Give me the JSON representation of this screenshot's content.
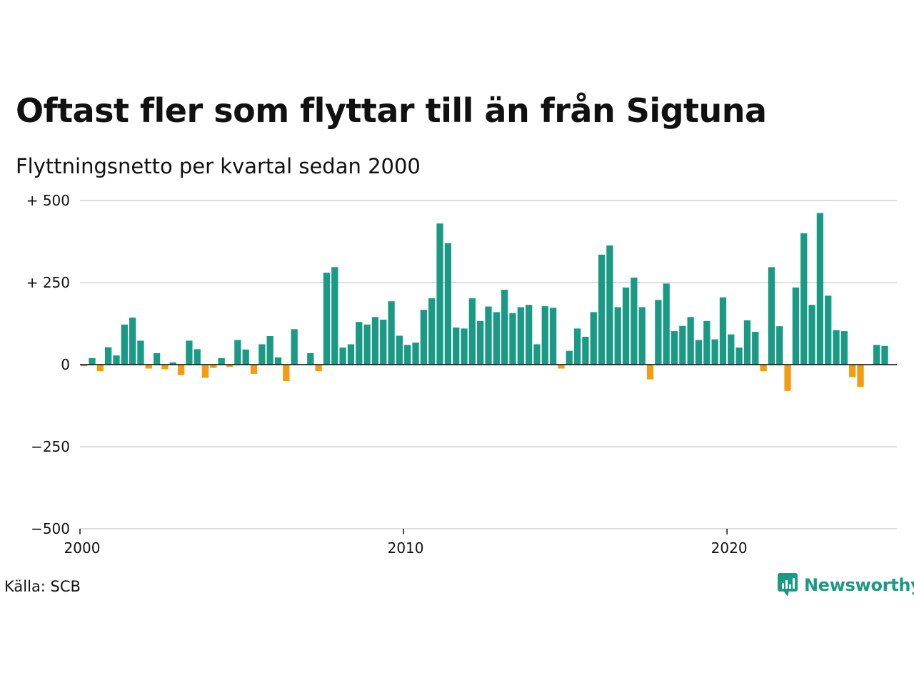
{
  "chart_data": {
    "type": "bar",
    "title": "Oftast fler som flyttar till än från Sigtuna",
    "subtitle": "Flyttningsnetto per kvartal sedan 2000",
    "xlabel": "",
    "ylabel": "",
    "ylim": [
      -500,
      500
    ],
    "xlim": [
      2000.0,
      2025.25
    ],
    "y_ticks": [
      {
        "value": 500,
        "label": "+ 500"
      },
      {
        "value": 250,
        "label": "+ 250"
      },
      {
        "value": 0,
        "label": "0"
      },
      {
        "value": -250,
        "label": "−250"
      },
      {
        "value": -500,
        "label": "−500"
      }
    ],
    "x_ticks": [
      {
        "value": 2000,
        "label": "2000"
      },
      {
        "value": 2010,
        "label": "2010"
      },
      {
        "value": 2020,
        "label": "2020"
      }
    ],
    "grid": true,
    "start_year": 2000,
    "positive_color": "#1a9a84",
    "negative_color": "#f39c12",
    "values": [
      -5,
      20,
      -20,
      53,
      28,
      122,
      143,
      73,
      -12,
      35,
      -14,
      7,
      -32,
      73,
      47,
      -40,
      -10,
      20,
      -7,
      75,
      46,
      -28,
      62,
      87,
      22,
      -50,
      108,
      0,
      35,
      -20,
      280,
      297,
      52,
      62,
      130,
      122,
      145,
      137,
      193,
      88,
      60,
      67,
      167,
      202,
      430,
      370,
      113,
      110,
      202,
      133,
      177,
      160,
      228,
      157,
      175,
      182,
      62,
      178,
      173,
      -12,
      42,
      110,
      85,
      160,
      335,
      363,
      175,
      235,
      265,
      175,
      -45,
      197,
      247,
      102,
      118,
      145,
      75,
      133,
      77,
      205,
      92,
      52,
      135,
      100,
      -20,
      297,
      117,
      -80,
      235,
      400,
      182,
      462,
      210,
      105,
      102,
      -38,
      -68,
      0,
      60,
      57
    ]
  },
  "source": "Källa: SCB",
  "brand": {
    "name": "Newsworthy",
    "icon": "chart-logo-icon",
    "color": "#1a9a84"
  }
}
